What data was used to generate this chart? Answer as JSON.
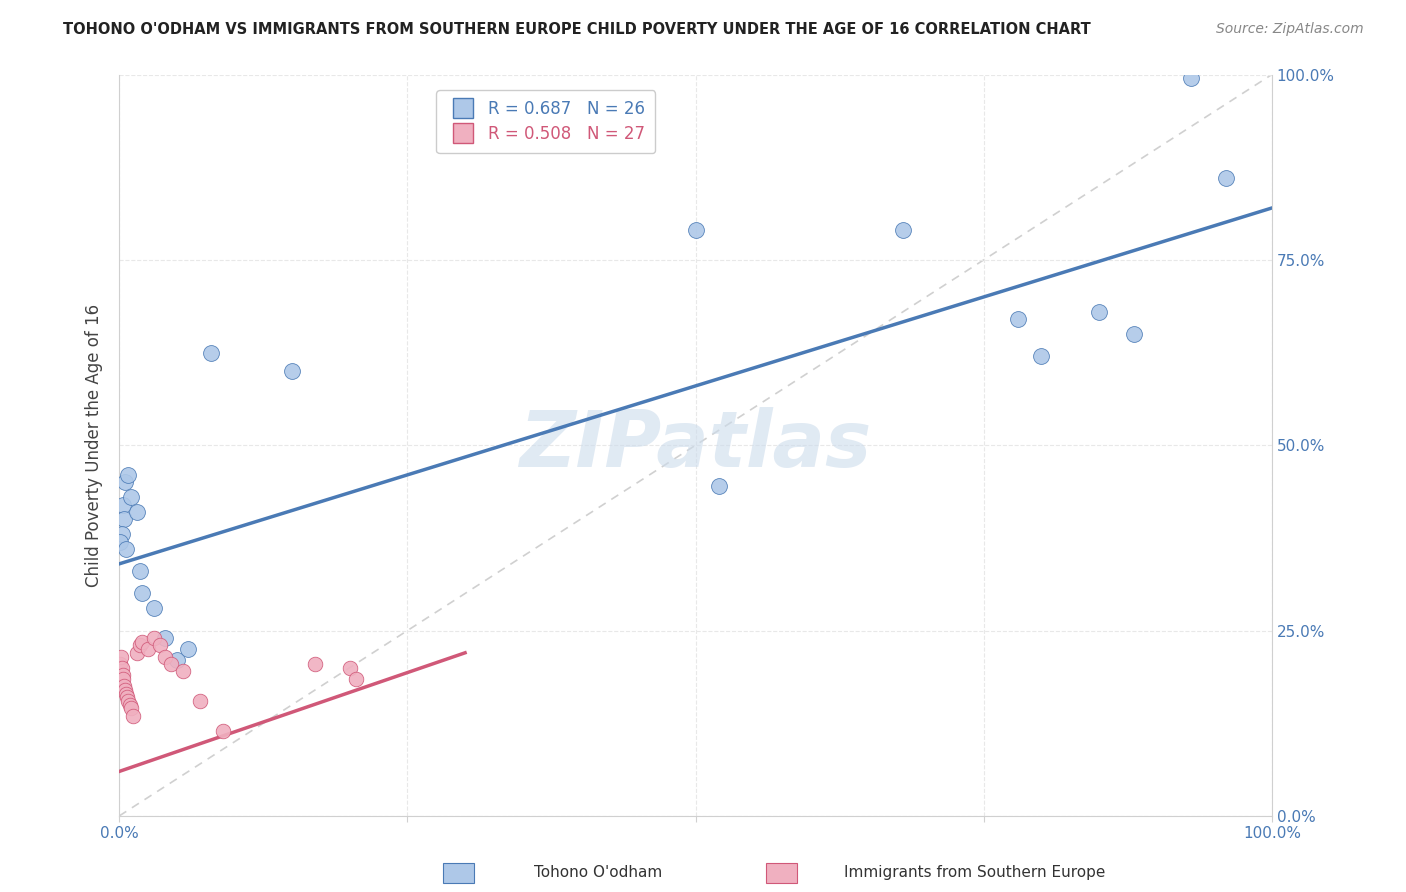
{
  "title": "TOHONO O'ODHAM VS IMMIGRANTS FROM SOUTHERN EUROPE CHILD POVERTY UNDER THE AGE OF 16 CORRELATION CHART",
  "source": "Source: ZipAtlas.com",
  "ylabel": "Child Poverty Under the Age of 16",
  "blue_label": "Tohono O'odham",
  "pink_label": "Immigrants from Southern Europe",
  "blue_R": 0.687,
  "blue_N": 26,
  "pink_R": 0.508,
  "pink_N": 27,
  "blue_color": "#aec8e8",
  "pink_color": "#f0b0c0",
  "blue_line_color": "#4a7ab5",
  "pink_line_color": "#d05878",
  "blue_scatter": [
    [
      0.3,
      42.0
    ],
    [
      0.5,
      45.0
    ],
    [
      0.8,
      46.0
    ],
    [
      1.0,
      43.0
    ],
    [
      0.4,
      40.0
    ],
    [
      1.5,
      41.0
    ],
    [
      0.2,
      38.0
    ],
    [
      0.1,
      37.0
    ],
    [
      1.8,
      33.0
    ],
    [
      2.0,
      30.0
    ],
    [
      3.0,
      28.0
    ],
    [
      4.0,
      24.0
    ],
    [
      5.0,
      21.0
    ],
    [
      6.0,
      22.5
    ],
    [
      15.0,
      60.0
    ],
    [
      8.0,
      62.5
    ],
    [
      52.0,
      44.5
    ],
    [
      68.0,
      79.0
    ],
    [
      78.0,
      67.0
    ],
    [
      80.0,
      62.0
    ],
    [
      85.0,
      68.0
    ],
    [
      88.0,
      65.0
    ],
    [
      93.0,
      99.5
    ],
    [
      96.0,
      86.0
    ],
    [
      50.0,
      79.0
    ],
    [
      0.6,
      36.0
    ]
  ],
  "pink_scatter": [
    [
      0.1,
      20.5
    ],
    [
      0.15,
      21.5
    ],
    [
      0.2,
      20.0
    ],
    [
      0.3,
      19.0
    ],
    [
      0.35,
      18.5
    ],
    [
      0.4,
      17.5
    ],
    [
      0.5,
      17.0
    ],
    [
      0.6,
      16.5
    ],
    [
      0.7,
      16.0
    ],
    [
      0.8,
      15.5
    ],
    [
      0.9,
      15.0
    ],
    [
      1.0,
      14.5
    ],
    [
      1.2,
      13.5
    ],
    [
      1.5,
      22.0
    ],
    [
      1.8,
      23.0
    ],
    [
      2.0,
      23.5
    ],
    [
      2.5,
      22.5
    ],
    [
      3.0,
      24.0
    ],
    [
      3.5,
      23.0
    ],
    [
      4.0,
      21.5
    ],
    [
      4.5,
      20.5
    ],
    [
      5.5,
      19.5
    ],
    [
      7.0,
      15.5
    ],
    [
      9.0,
      11.5
    ],
    [
      17.0,
      20.5
    ],
    [
      20.0,
      20.0
    ],
    [
      20.5,
      18.5
    ]
  ],
  "blue_line_x": [
    0.0,
    100.0
  ],
  "blue_line_y": [
    34.0,
    82.0
  ],
  "pink_line_x": [
    0.0,
    30.0
  ],
  "pink_line_y": [
    6.0,
    22.0
  ],
  "diag_line_color": "#d0d0d0",
  "grid_color": "#e8e8e8",
  "background_color": "#ffffff",
  "watermark": "ZIPatlas",
  "watermark_color": "#ccdcec",
  "xlim": [
    0,
    100
  ],
  "ylim": [
    0,
    100
  ],
  "xticks": [
    0,
    25,
    50,
    75,
    100
  ],
  "yticks": [
    0,
    25,
    50,
    75,
    100
  ],
  "xtick_labels": [
    "0.0%",
    "",
    "",
    "",
    "100.0%"
  ],
  "ytick_labels_right": [
    "0.0%",
    "25.0%",
    "50.0%",
    "75.0%",
    "100.0%"
  ]
}
